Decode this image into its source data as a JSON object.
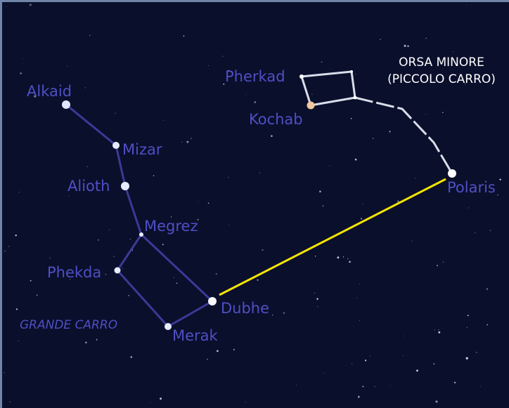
{
  "constellations": [
    {
      "name": "GRANDE CARRO",
      "stars": [
        "Alkaid",
        "Mizar",
        "Alioth",
        "Megrez",
        "Phekda",
        "Merak",
        "Dubhe"
      ]
    },
    {
      "name_lines": [
        "ORSA MINORE",
        "(PICCOLO CARRO)"
      ],
      "stars": [
        "Pherkad",
        "Kochab",
        "Polaris"
      ]
    }
  ]
}
